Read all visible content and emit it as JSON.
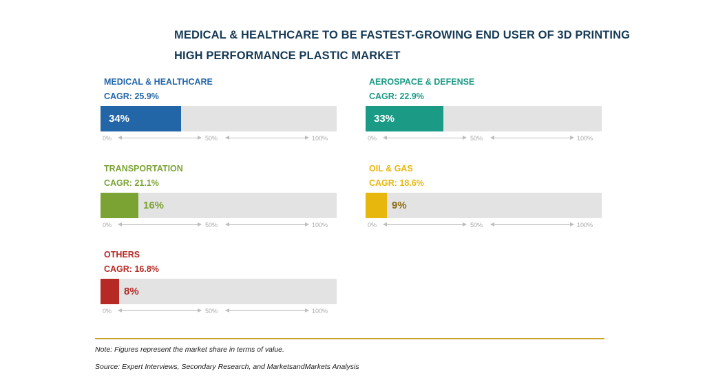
{
  "title_lines": [
    "MEDICAL & HEALTHCARE TO BE FASTEST-GROWING END USER OF 3D PRINTING",
    "HIGH PERFORMANCE PLASTIC MARKET"
  ],
  "axis_labels": [
    "0%",
    "50%",
    "100%"
  ],
  "chart_data": {
    "type": "bar",
    "categories": [
      "MEDICAL & HEALTHCARE",
      "AEROSPACE & DEFENSE",
      "TRANSPORTATION",
      "OIL & GAS",
      "OTHERS"
    ],
    "values": [
      34,
      33,
      16,
      9,
      8
    ],
    "value_labels": [
      "34%",
      "33%",
      "16%",
      "9%",
      "8%"
    ],
    "cagr": [
      "CAGR: 25.9%",
      "CAGR: 22.9%",
      "CAGR: 21.1%",
      "CAGR: 18.6%",
      "CAGR: 16.8%"
    ],
    "colors": [
      "#2366a8",
      "#1b9a86",
      "#7aa334",
      "#e8b70e",
      "#b52a24"
    ],
    "label_colors": [
      "#2366a8",
      "#1b9a86",
      "#7aa334",
      "#e8b70e",
      "#b52a24"
    ],
    "xlim": [
      0,
      100
    ],
    "unit": "%"
  },
  "notes": {
    "note": "Note: Figures represent the market share in terms of value.",
    "source": "Source: Expert Interviews, Secondary Research, and MarketsandMarkets Analysis"
  }
}
